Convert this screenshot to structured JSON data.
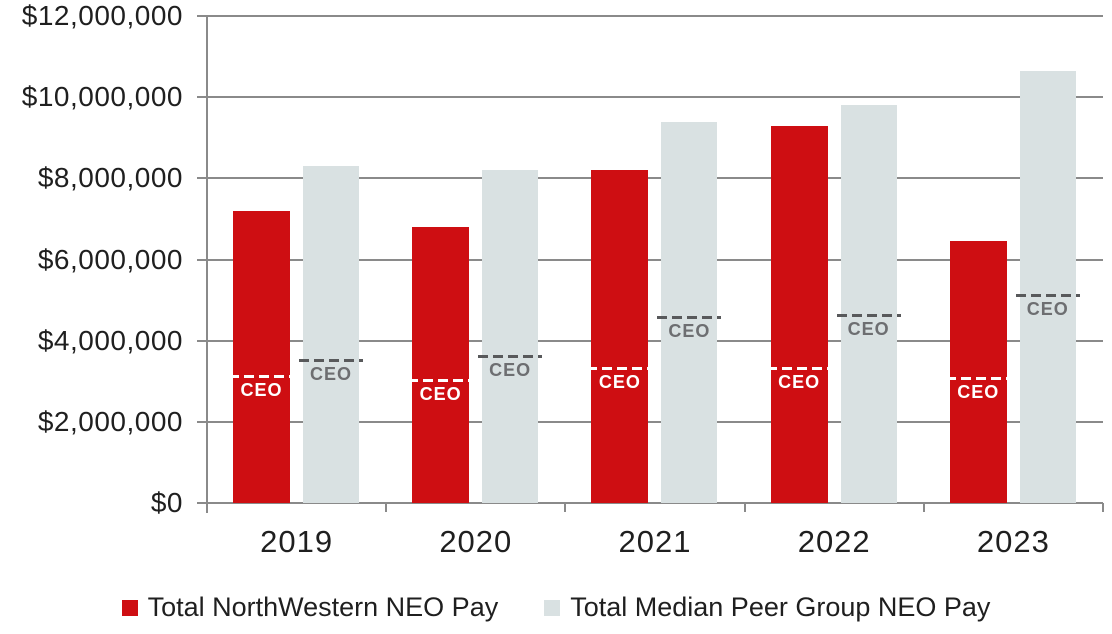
{
  "chart_data": {
    "type": "bar",
    "title": "",
    "categories": [
      "2019",
      "2020",
      "2021",
      "2022",
      "2023"
    ],
    "series": [
      {
        "name": "Total NorthWestern NEO Pay",
        "color": "#CE0E12",
        "values": [
          7200000,
          6800000,
          8200000,
          9300000,
          6450000
        ],
        "ceo_marker_values": [
          3100000,
          3000000,
          3300000,
          3300000,
          3050000
        ],
        "marker_dash_color": "#FFFFFF",
        "marker_label_color": "#FFFFFF"
      },
      {
        "name": "Total Median Peer Group NEO Pay",
        "color": "#D9E1E2",
        "values": [
          8300000,
          8200000,
          9400000,
          9800000,
          10650000
        ],
        "ceo_marker_values": [
          3500000,
          3600000,
          4550000,
          4600000,
          5100000
        ],
        "marker_dash_color": "#58595B",
        "marker_label_color": "#6D6E71"
      }
    ],
    "marker_label": "CEO",
    "ylim": [
      0,
      12000000
    ],
    "ytick_step": 2000000,
    "y_tick_labels": [
      "$0",
      "$2,000,000",
      "$4,000,000",
      "$6,000,000",
      "$8,000,000",
      "$10,000,000",
      "$12,000,000"
    ],
    "xlabel": "",
    "ylabel": "",
    "grid": true,
    "legend_position": "bottom",
    "colors": {
      "axis": "#8A8A8A",
      "text": "#1F1F1F",
      "background": "#FFFFFF"
    }
  }
}
